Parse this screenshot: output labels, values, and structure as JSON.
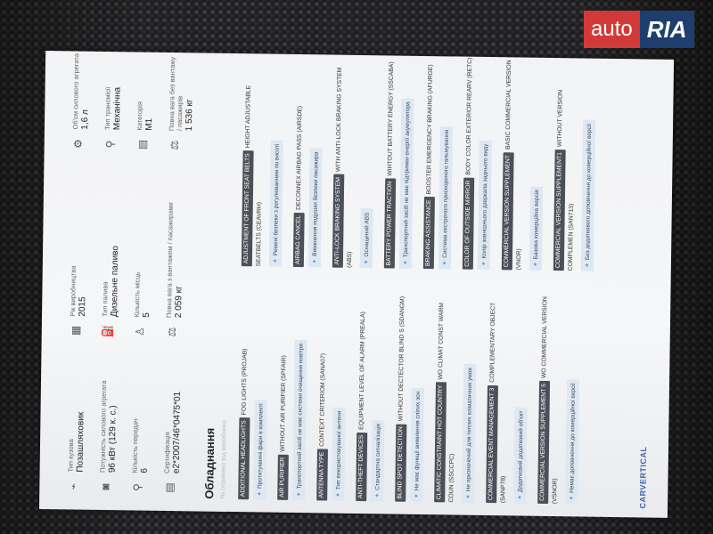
{
  "watermark": {
    "part1": "auto",
    "part2": "RIA"
  },
  "specs": [
    {
      "icon": "car-body-icon",
      "glyph": "⌁",
      "label": "Тип кузова",
      "value": "Позашляховик"
    },
    {
      "icon": "calendar-icon",
      "glyph": "▦",
      "label": "Рік виробництва",
      "value": "2015"
    },
    {
      "icon": "engine-icon",
      "glyph": "⚙",
      "label": "Об'єм силового агрегата",
      "value": "1,6 л"
    },
    {
      "icon": "power-icon",
      "glyph": "◙",
      "label": "Потужність силового агрегата",
      "value": "96 кВт (129 к. с.)"
    },
    {
      "icon": "fuel-icon",
      "glyph": "⛽",
      "label": "Тип палива",
      "value": "Дизельне паливо"
    },
    {
      "icon": "transmission-icon",
      "glyph": "⚲",
      "label": "Тип трансмісії",
      "value": "Механічна"
    },
    {
      "icon": "gears-icon",
      "glyph": "⚲",
      "label": "Кількість передач",
      "value": "6"
    },
    {
      "icon": "seat-icon",
      "glyph": "♙",
      "label": "Кількість місць",
      "value": "5"
    },
    {
      "icon": "category-icon",
      "glyph": "▤",
      "label": "Категорія",
      "value": "M1"
    },
    {
      "icon": "certificate-icon",
      "glyph": "▤",
      "label": "Сертифікація",
      "value": "e2*2007/46*0475*01"
    },
    {
      "icon": "weight-icon",
      "glyph": "⚖",
      "label": "Повна вага з вантажем / пасажирами",
      "value": "2 059 кг"
    },
    {
      "icon": "weight-icon",
      "glyph": "⚖",
      "label": "Повна вага без вантажу / пасажирів",
      "value": "1 536 кг"
    }
  ],
  "equipment": {
    "title": "Обладнання",
    "subtitle": "Як отримано від виробника",
    "left": [
      {
        "badge": "ADDITIONAL HEADLIGHTS",
        "value": "FOG LIGHTS (PROJAB)",
        "desc": "Протитуманні фари в комплекті"
      },
      {
        "badge": "AIR PURIFIER",
        "value": "WITHOUT AIR PURIFIER (SPFAIR)",
        "desc": "Транспортний засіб не має системи очищення повітря"
      },
      {
        "badge": "ANTENNA TYPE",
        "value": "CONTEXT CRITERIOM (SANA07)",
        "desc": "Тип використовуваної антени"
      },
      {
        "badge": "ANTI-THEFT DEVICES",
        "value": "EQUIPMENT LEVEL OF ALARM (PREALA)",
        "desc": "Стандартна сигналізація"
      },
      {
        "badge": "BLIND SPOT DETECTION",
        "value": "WITHOUT DECTECTOR BLIND S (SDANGM)",
        "desc": "Не має функції виявлення сліпих зон"
      },
      {
        "badge": "CLIMATIC CONSTRAINT HOT COUNTRY",
        "value": "WO CLIMAT CONST WARM COUN (SSCCPC)",
        "desc": "Не призначений для теплих кліматичних умов"
      },
      {
        "badge": "COMMERCIAL EVENT MANAGEMENT 3",
        "value": "COMPLEMENTARY OBJECT (SANP78)",
        "desc": "Додатковий додатковий об'єкт"
      },
      {
        "badge": "COMMERCIAL VERSION SUPPLEMENT 5",
        "value": "WO COMMERCIAL VERSION (VSNOR)",
        "desc": "Немає доповнення до комерційної версії"
      }
    ],
    "right": [
      {
        "badge": "ADJUSTMENT OF FRONT SEAT BELTS",
        "value": "HEIGHT ADJUSTABLE SEATBELTS (CEAVRH)",
        "desc": "Ремені безпеки з регулюванням по висоті"
      },
      {
        "badge": "AIRBAG CANCEL",
        "value": "DECONNEX AIRBAG PASS (AIRSDE)",
        "desc": "Вимкнення подушки безпеки пасажира"
      },
      {
        "badge": "ANTI-LOCK BRAKING SYSTEM",
        "value": "WITH ANTI-LOCK BRAKING SYSTEM (ABS)",
        "desc": "Оснащений ABS"
      },
      {
        "badge": "BATTERY POWER TRACTION",
        "value": "WIHTOUT BATTERY ENERGY (SSCABA)",
        "desc": "Транспортний засіб не має підтримки енергії акумулятора"
      },
      {
        "badge": "BRAKING ASSISTANCE",
        "value": "BOOSTER EMERGENCY BRAKING (AFURGE)",
        "desc": "Система екстреного прискореного гальмування"
      },
      {
        "badge": "COLOR OF OUTSIDE MIRROR",
        "value": "BODY COLOR EXTERIOR REARV (RETC)",
        "desc": "Колір зовнішнього дзеркала заднього виду"
      },
      {
        "badge": "COMMERCIAL VERSION SUPPLEMENT",
        "value": "BASIC COMMERCIAL VERSION (VNOR)",
        "desc": "Базова комерційна версія"
      },
      {
        "badge": "COMMERCIAL VERSION SUPPLEMENT1",
        "value": "WITHOUT VERSION COMPLEMEN (SAN713)",
        "desc": "Без додаткового доповнення до комерційної версії"
      }
    ]
  },
  "footer": {
    "brand": "CARVERTICAL"
  }
}
